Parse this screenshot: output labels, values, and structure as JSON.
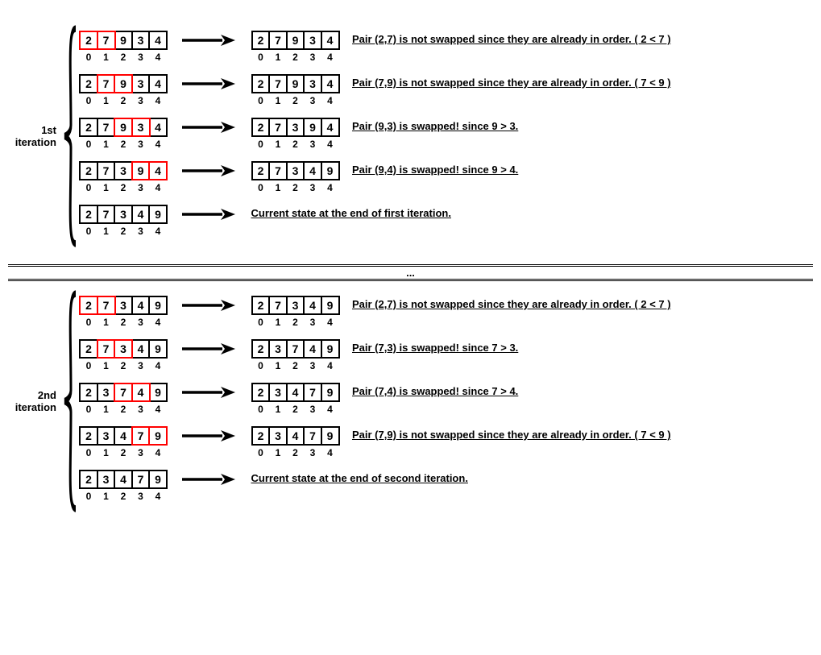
{
  "indices": [
    "0",
    "1",
    "2",
    "3",
    "4"
  ],
  "highlight_color": "#ff0000",
  "border_color": "#000000",
  "iterations": [
    {
      "label": "1st\niteration",
      "steps": [
        {
          "before": [
            "2",
            "7",
            "9",
            "3",
            "4"
          ],
          "hl": [
            0,
            1
          ],
          "after": [
            "2",
            "7",
            "9",
            "3",
            "4"
          ],
          "desc": "Pair (2,7) is not swapped since they are already in order. ( 2 < 7 )"
        },
        {
          "before": [
            "2",
            "7",
            "9",
            "3",
            "4"
          ],
          "hl": [
            1,
            2
          ],
          "after": [
            "2",
            "7",
            "9",
            "3",
            "4"
          ],
          "desc": "Pair (7,9) is not swapped since they are already in order. ( 7 < 9 )"
        },
        {
          "before": [
            "2",
            "7",
            "9",
            "3",
            "4"
          ],
          "hl": [
            2,
            3
          ],
          "after": [
            "2",
            "7",
            "3",
            "9",
            "4"
          ],
          "desc": "Pair (9,3) is swapped! since 9 > 3."
        },
        {
          "before": [
            "2",
            "7",
            "3",
            "9",
            "4"
          ],
          "hl": [
            3,
            4
          ],
          "after": [
            "2",
            "7",
            "3",
            "4",
            "9"
          ],
          "desc": "Pair (9,4) is swapped! since 9 > 4."
        },
        {
          "before": [
            "2",
            "7",
            "3",
            "4",
            "9"
          ],
          "hl": [],
          "after": null,
          "desc": "Current state at the end of first iteration."
        }
      ]
    },
    {
      "label": "2nd\niteration",
      "steps": [
        {
          "before": [
            "2",
            "7",
            "3",
            "4",
            "9"
          ],
          "hl": [
            0,
            1
          ],
          "after": [
            "2",
            "7",
            "3",
            "4",
            "9"
          ],
          "desc": "Pair (2,7) is not swapped since they are already in order. ( 2 < 7 )"
        },
        {
          "before": [
            "2",
            "7",
            "3",
            "4",
            "9"
          ],
          "hl": [
            1,
            2
          ],
          "after": [
            "2",
            "3",
            "7",
            "4",
            "9"
          ],
          "desc": "Pair (7,3) is swapped! since 7 > 3."
        },
        {
          "before": [
            "2",
            "3",
            "7",
            "4",
            "9"
          ],
          "hl": [
            2,
            3
          ],
          "after": [
            "2",
            "3",
            "4",
            "7",
            "9"
          ],
          "desc": "Pair (7,4) is swapped! since 7 > 4."
        },
        {
          "before": [
            "2",
            "3",
            "4",
            "7",
            "9"
          ],
          "hl": [
            3,
            4
          ],
          "after": [
            "2",
            "3",
            "4",
            "7",
            "9"
          ],
          "desc": "Pair (7,9) is not swapped since they are already in order. ( 7 < 9 )"
        },
        {
          "before": [
            "2",
            "3",
            "4",
            "7",
            "9"
          ],
          "hl": [],
          "after": null,
          "desc": "Current state at the end of second iteration."
        }
      ]
    }
  ]
}
